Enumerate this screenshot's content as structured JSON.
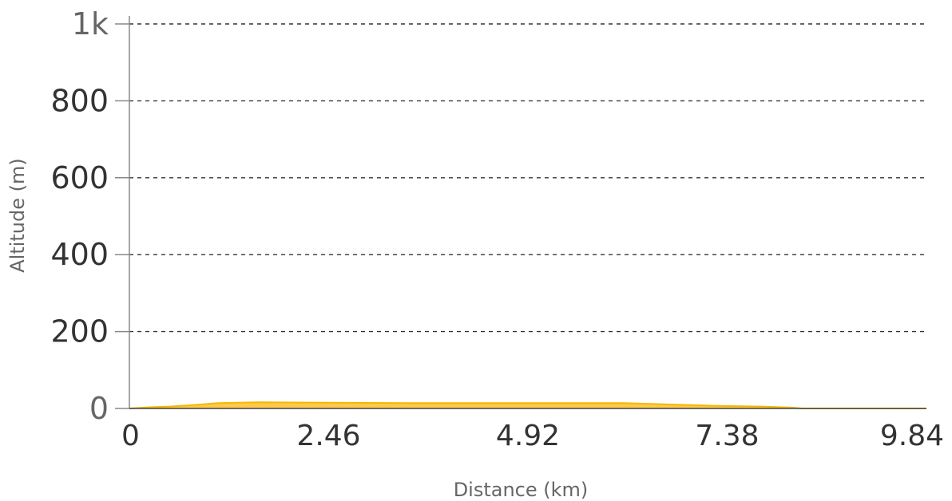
{
  "chart_data": {
    "type": "area",
    "title": "",
    "xlabel": "Distance (km)",
    "ylabel": "Altitude (m)",
    "xlim": [
      0,
      9.84
    ],
    "ylim": [
      0,
      1000
    ],
    "x_ticks": [
      "0",
      "2.46",
      "4.92",
      "7.38",
      "9.84"
    ],
    "x_tick_values": [
      0,
      2.46,
      4.92,
      7.38,
      9.84
    ],
    "y_ticks": [
      "0",
      "200",
      "400",
      "600",
      "800",
      "1k"
    ],
    "y_tick_values": [
      0,
      200,
      400,
      600,
      800,
      1000
    ],
    "grid": "horizontal dashed",
    "series": [
      {
        "color": "#f5b800",
        "fill": "#ffc94d",
        "x": [
          0,
          0.25,
          0.5,
          0.8,
          1.1,
          1.6,
          2.4,
          3.5,
          4.5,
          5.5,
          6.1,
          6.6,
          7.2,
          7.8,
          8.2,
          8.3,
          8.8,
          9.3,
          9.84
        ],
        "y": [
          0,
          3,
          5,
          9,
          14,
          16,
          15,
          14,
          14,
          14,
          14,
          11,
          7,
          5,
          2,
          0,
          0,
          0,
          0
        ]
      }
    ],
    "colors": {
      "axis": "#888888",
      "grid": "#333333",
      "tick_dark": "#333333",
      "tick_light": "#666666",
      "area_fill": "#ffc94d",
      "area_stroke": "#f5b800"
    }
  }
}
